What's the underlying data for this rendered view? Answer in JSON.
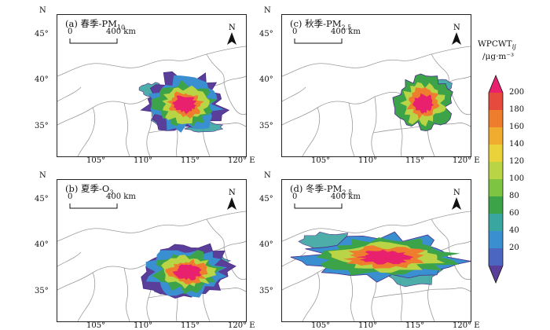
{
  "panels": [
    {
      "id": "a",
      "label_prefix": "(a) 春季-PM",
      "label_sub": "10",
      "lat_ticks": [
        "45°",
        "40°",
        "35°"
      ],
      "lon_ticks": [
        "105°",
        "110°",
        "115°"
      ],
      "east_tick": "120° E",
      "north": "N"
    },
    {
      "id": "c",
      "label_prefix": "(c) 秋季-PM",
      "label_sub": "2.5",
      "lat_ticks": [
        "45°",
        "40°",
        "35°"
      ],
      "lon_ticks": [
        "105°",
        "110°",
        "115°"
      ],
      "east_tick": "120° E",
      "north": "N"
    },
    {
      "id": "b",
      "label_prefix": "(b) 夏季-O",
      "label_sub": "3",
      "lat_ticks": [
        "45°",
        "40°",
        "35°"
      ],
      "lon_ticks": [
        "105°",
        "110°",
        "115°"
      ],
      "east_tick": "120° E",
      "north": "N"
    },
    {
      "id": "d",
      "label_prefix": "(d) 冬季-PM",
      "label_sub": "2.5",
      "lat_ticks": [
        "45°",
        "40°",
        "35°"
      ],
      "lon_ticks": [
        "105°",
        "110°",
        "115°"
      ],
      "east_tick": "120° E",
      "north": "N"
    }
  ],
  "scale_bar": {
    "start": "0",
    "end": "400 km"
  },
  "north_arrow_letter": "N",
  "colorbar": {
    "title_line1": "WPCWT",
    "title_sub": "ij",
    "title_line2": "/μg·m⁻³",
    "ticks": [
      "200",
      "180",
      "160",
      "140",
      "120",
      "100",
      "80",
      "60",
      "40",
      "20"
    ],
    "colors": [
      "#e8206e",
      "#e64a3c",
      "#ee7d2e",
      "#f0ac2f",
      "#e9d23a",
      "#b9d445",
      "#7cc442",
      "#3ca348",
      "#3aa6a0",
      "#3a8fd0",
      "#4a66c0",
      "#5a3f9a"
    ]
  }
}
